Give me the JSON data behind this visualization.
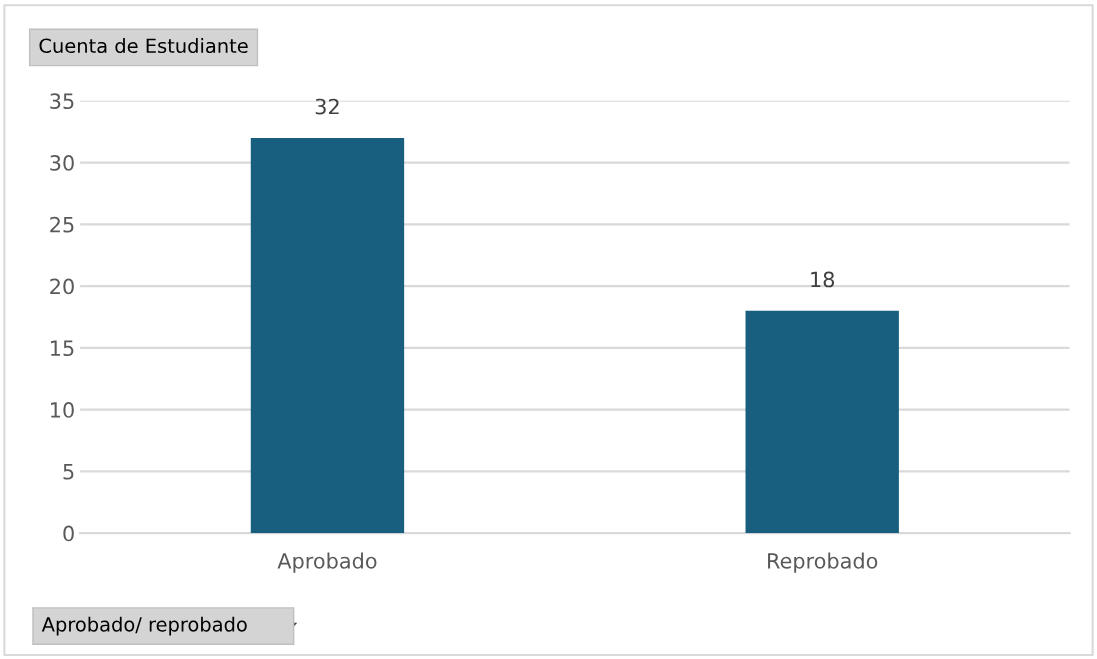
{
  "chart_data": {
    "type": "bar",
    "ylabel": "Cuenta de Estudiante",
    "xlabel": "Aprobado/ reprobado",
    "categories": [
      "Aprobado",
      "Reprobado"
    ],
    "values": [
      32,
      18
    ],
    "color": "#175e7f",
    "ylim": [
      0,
      35
    ],
    "yticks": [
      0,
      5,
      10,
      15,
      20,
      25,
      30,
      35
    ],
    "grid": "y",
    "legend": false,
    "data_labels": true
  }
}
